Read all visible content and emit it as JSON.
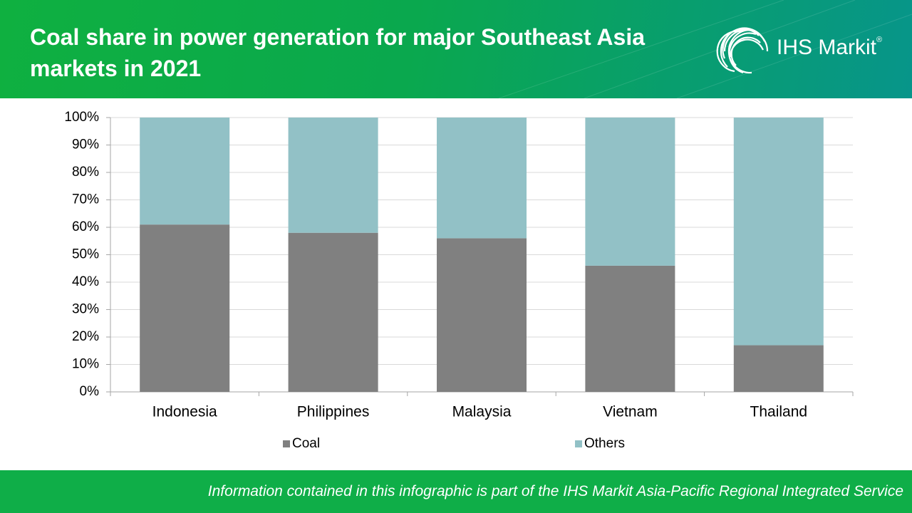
{
  "header": {
    "title": "Coal share in power generation for major Southeast Asia markets in 2021",
    "brand": "IHS Markit",
    "brand_mark": "®"
  },
  "chart_data": {
    "type": "stacked_bar",
    "categories": [
      "Indonesia",
      "Philippines",
      "Malaysia",
      "Vietnam",
      "Thailand"
    ],
    "series": [
      {
        "name": "Coal",
        "color": "#808080",
        "values": [
          61,
          58,
          56,
          46,
          17
        ]
      },
      {
        "name": "Others",
        "color": "#92c1c6",
        "values": [
          39,
          42,
          44,
          54,
          83
        ]
      }
    ],
    "ylim": [
      0,
      100
    ],
    "yticks": [
      {
        "value": 0,
        "label": "0%"
      },
      {
        "value": 10,
        "label": "10%"
      },
      {
        "value": 20,
        "label": "20%"
      },
      {
        "value": 30,
        "label": "30%"
      },
      {
        "value": 40,
        "label": "40%"
      },
      {
        "value": 50,
        "label": "50%"
      },
      {
        "value": 60,
        "label": "60%"
      },
      {
        "value": 70,
        "label": "70%"
      },
      {
        "value": 80,
        "label": "80%"
      },
      {
        "value": 90,
        "label": "90%"
      },
      {
        "value": 100,
        "label": "100%"
      }
    ],
    "grid": true,
    "legend": "bottom"
  },
  "footer": {
    "text": "Information contained in this infographic is part of the IHS Markit Asia-Pacific Regional Integrated Service"
  }
}
